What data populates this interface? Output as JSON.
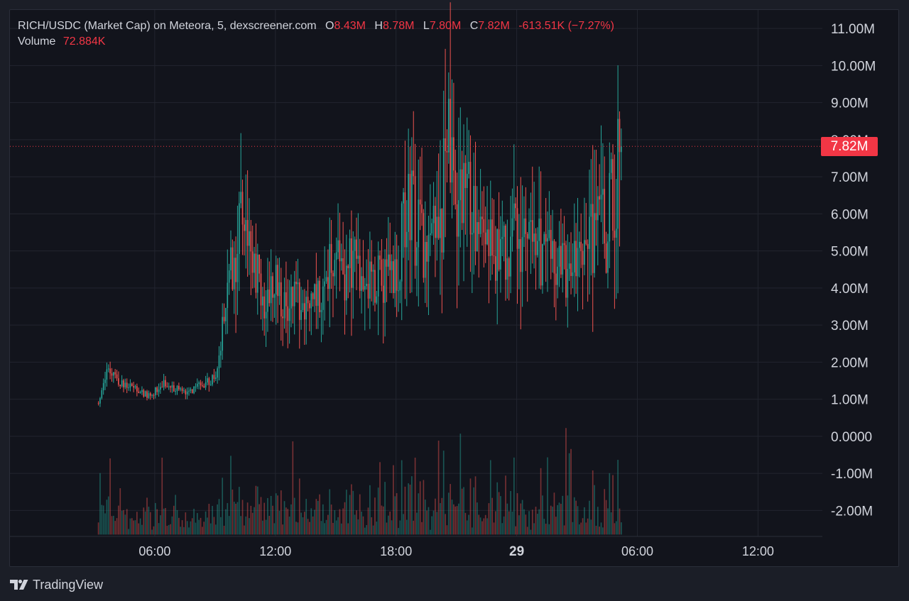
{
  "legend": {
    "title": "RICH/USDC (Market Cap) on Meteora, 5, dexscreener.com",
    "o_label": "O",
    "o_value": "8.43M",
    "h_label": "H",
    "h_value": "8.78M",
    "l_label": "L",
    "l_value": "7.80M",
    "c_label": "C",
    "c_value": "7.82M",
    "change": "-613.51K (−7.27%)",
    "volume_label": "Volume",
    "volume_value": "72.884K"
  },
  "price_tag": "7.82M",
  "brand": {
    "name": "TradingView",
    "logo_icon": "tradingview-logo-icon"
  },
  "colors": {
    "up": "#26a69a",
    "down": "#ef5350",
    "accent": "#f23645",
    "grid": "#22252f",
    "text": "#d1d4dc"
  },
  "chart_data": {
    "type": "candlestick",
    "symbol": "RICH/USDC",
    "interval": "5",
    "y_axis": {
      "ticks": [
        "11.00M",
        "10.00M",
        "9.00M",
        "8.00M",
        "7.00M",
        "6.00M",
        "5.00M",
        "4.00M",
        "3.00M",
        "2.00M",
        "1.00M",
        "0.0000",
        "-1.00M",
        "-2.00M"
      ],
      "tick_values": [
        11,
        10,
        9,
        8,
        7,
        6,
        5,
        4,
        3,
        2,
        1,
        0,
        -1,
        -2
      ],
      "unit": "M",
      "range": [
        -2.7,
        11.5
      ]
    },
    "x_axis": {
      "ticks": [
        "06:00",
        "12:00",
        "18:00",
        "29",
        "06:00",
        "12:00"
      ],
      "tick_hours": [
        6,
        12,
        18,
        24,
        30,
        36
      ],
      "range_hours": [
        -1.2,
        39.2
      ]
    },
    "last_price": 7.82,
    "candles_start_hour": 3.2,
    "candle_interval_minutes": 5,
    "close_path": [
      [
        3.2,
        0.9
      ],
      [
        3.6,
        1.75
      ],
      [
        4.2,
        1.5
      ],
      [
        5.0,
        1.3
      ],
      [
        5.8,
        1.05
      ],
      [
        6.3,
        1.45
      ],
      [
        7.0,
        1.3
      ],
      [
        7.7,
        1.2
      ],
      [
        8.5,
        1.45
      ],
      [
        9.0,
        1.6
      ],
      [
        9.3,
        2.6
      ],
      [
        9.7,
        4.4
      ],
      [
        10.2,
        5.6
      ],
      [
        10.6,
        5.1
      ],
      [
        11.0,
        4.6
      ],
      [
        11.4,
        3.6
      ],
      [
        12.0,
        4.0
      ],
      [
        12.5,
        3.7
      ],
      [
        13.3,
        3.6
      ],
      [
        13.8,
        3.75
      ],
      [
        14.3,
        3.7
      ],
      [
        14.8,
        4.8
      ],
      [
        15.4,
        4.2
      ],
      [
        15.9,
        4.9
      ],
      [
        16.5,
        4.3
      ],
      [
        17.0,
        4.1
      ],
      [
        17.6,
        4.5
      ],
      [
        18.0,
        4.3
      ],
      [
        18.3,
        5.3
      ],
      [
        18.7,
        6.2
      ],
      [
        19.0,
        5.7
      ],
      [
        19.5,
        5.2
      ],
      [
        20.0,
        5.5
      ],
      [
        20.3,
        6.3
      ],
      [
        20.7,
        7.6
      ],
      [
        21.0,
        6.6
      ],
      [
        21.5,
        6.2
      ],
      [
        22.0,
        5.6
      ],
      [
        22.5,
        5.4
      ],
      [
        23.0,
        5.1
      ],
      [
        23.5,
        4.8
      ],
      [
        23.9,
        5.4
      ],
      [
        24.5,
        5.6
      ],
      [
        25.0,
        4.9
      ],
      [
        25.5,
        5.1
      ],
      [
        25.9,
        4.6
      ],
      [
        26.4,
        4.4
      ],
      [
        26.9,
        5.0
      ],
      [
        27.3,
        4.8
      ],
      [
        27.7,
        5.4
      ],
      [
        28.1,
        6.0
      ],
      [
        28.4,
        5.5
      ],
      [
        28.8,
        6.3
      ],
      [
        29.0,
        7.0
      ],
      [
        29.1,
        7.9
      ],
      [
        29.2,
        7.82
      ]
    ],
    "volume_panel": {
      "baseline": -2.65,
      "top_level": 0.25
    }
  }
}
